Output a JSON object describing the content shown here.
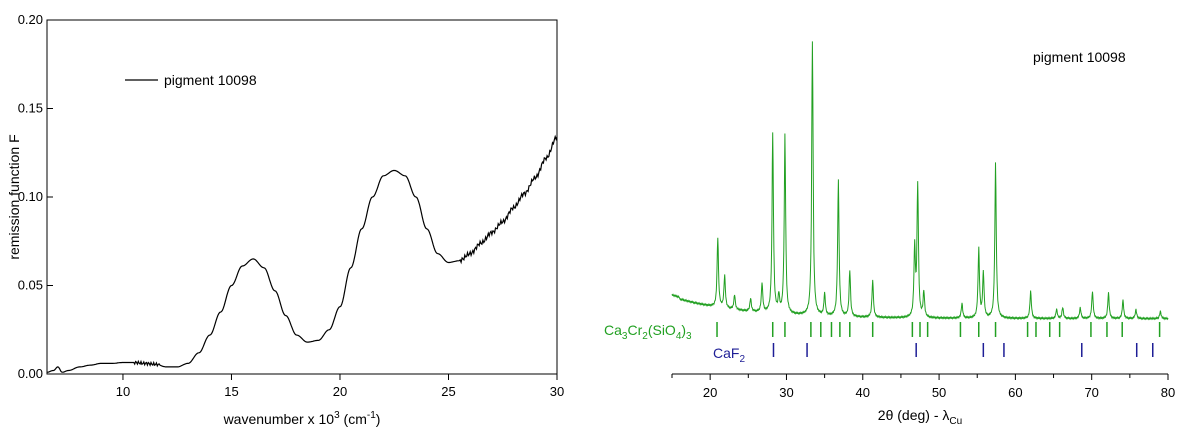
{
  "chart_data": [
    {
      "type": "line",
      "xlabel": "wavenumber x 10",
      "xlabel_sup": "3",
      "xlabel_unit": " (cm",
      "xlabel_unit_sup": "-1",
      "xlabel_close": ")",
      "ylabel": "remission function F",
      "xlim": [
        6.5,
        30
      ],
      "ylim": [
        0,
        0.2
      ],
      "xticks": [
        10,
        15,
        20,
        25,
        30
      ],
      "yticks": [
        0.0,
        0.05,
        0.1,
        0.15,
        0.2
      ],
      "ytick_labels": [
        "0.00",
        "0.05",
        "0.10",
        "0.15",
        "0.20"
      ],
      "legend_position": "top-left",
      "series": [
        {
          "name": "pigment 10098",
          "color": "#000000",
          "x": [
            6.5,
            6.8,
            7.0,
            7.2,
            7.5,
            8.0,
            8.5,
            9.0,
            9.5,
            10.0,
            10.5,
            11.0,
            11.5,
            12.0,
            12.5,
            13.0,
            13.5,
            14.0,
            14.5,
            15.0,
            15.5,
            16.0,
            16.5,
            17.0,
            17.5,
            18.0,
            18.5,
            19.0,
            19.5,
            20.0,
            20.5,
            21.0,
            21.5,
            22.0,
            22.5,
            23.0,
            23.5,
            24.0,
            24.5,
            25.0,
            25.5,
            26.0,
            26.5,
            27.0,
            27.5,
            28.0,
            28.5,
            29.0,
            29.5,
            30.0
          ],
          "y": [
            0.001,
            0.002,
            0.004,
            0.001,
            0.002,
            0.004,
            0.005,
            0.006,
            0.006,
            0.0065,
            0.0065,
            0.006,
            0.0055,
            0.004,
            0.004,
            0.006,
            0.012,
            0.022,
            0.035,
            0.05,
            0.061,
            0.065,
            0.06,
            0.047,
            0.033,
            0.022,
            0.018,
            0.019,
            0.025,
            0.038,
            0.06,
            0.082,
            0.1,
            0.112,
            0.115,
            0.112,
            0.1,
            0.082,
            0.068,
            0.063,
            0.064,
            0.068,
            0.074,
            0.08,
            0.086,
            0.094,
            0.102,
            0.111,
            0.122,
            0.134
          ]
        }
      ]
    },
    {
      "type": "line",
      "title": "pigment 10098",
      "xlabel": "2θ (deg) - λ",
      "xlabel_sub": "Cu",
      "xlim": [
        15,
        80
      ],
      "xticks": [
        20,
        30,
        40,
        50,
        60,
        70,
        80
      ],
      "series": [
        {
          "color": "#22a022",
          "peaks": [
            [
              21.0,
              0.38
            ],
            [
              21.9,
              0.18
            ],
            [
              23.2,
              0.08
            ],
            [
              25.3,
              0.07
            ],
            [
              26.8,
              0.16
            ],
            [
              28.2,
              0.98
            ],
            [
              29.0,
              0.09
            ],
            [
              29.8,
              0.98
            ],
            [
              33.4,
              1.5
            ],
            [
              35.0,
              0.12
            ],
            [
              36.8,
              0.75
            ],
            [
              38.3,
              0.25
            ],
            [
              41.3,
              0.2
            ],
            [
              46.8,
              0.38
            ],
            [
              47.2,
              0.72
            ],
            [
              48.0,
              0.14
            ],
            [
              53.0,
              0.08
            ],
            [
              55.2,
              0.38
            ],
            [
              55.8,
              0.25
            ],
            [
              57.4,
              0.85
            ],
            [
              62.0,
              0.15
            ],
            [
              65.4,
              0.05
            ],
            [
              66.2,
              0.06
            ],
            [
              68.5,
              0.06
            ],
            [
              70.1,
              0.15
            ],
            [
              72.2,
              0.14
            ],
            [
              74.1,
              0.1
            ],
            [
              75.8,
              0.05
            ],
            [
              79.0,
              0.04
            ]
          ]
        }
      ],
      "reference_phases": [
        {
          "label_parts": [
            "Ca",
            "3",
            "Cr",
            "2",
            "(SiO",
            "4",
            ")",
            "3"
          ],
          "color": "#22a022",
          "positions": [
            20.9,
            28.2,
            29.8,
            33.2,
            34.5,
            35.9,
            37.0,
            38.3,
            41.3,
            46.5,
            47.5,
            48.5,
            52.8,
            55.2,
            57.4,
            61.6,
            62.7,
            64.5,
            65.8,
            69.9,
            72.0,
            74.0,
            78.9
          ]
        },
        {
          "label_parts": [
            "CaF",
            "2"
          ],
          "color": "#1e1e96",
          "positions": [
            28.3,
            32.7,
            47.0,
            55.8,
            58.5,
            68.7,
            75.9,
            78.0
          ]
        }
      ]
    }
  ]
}
